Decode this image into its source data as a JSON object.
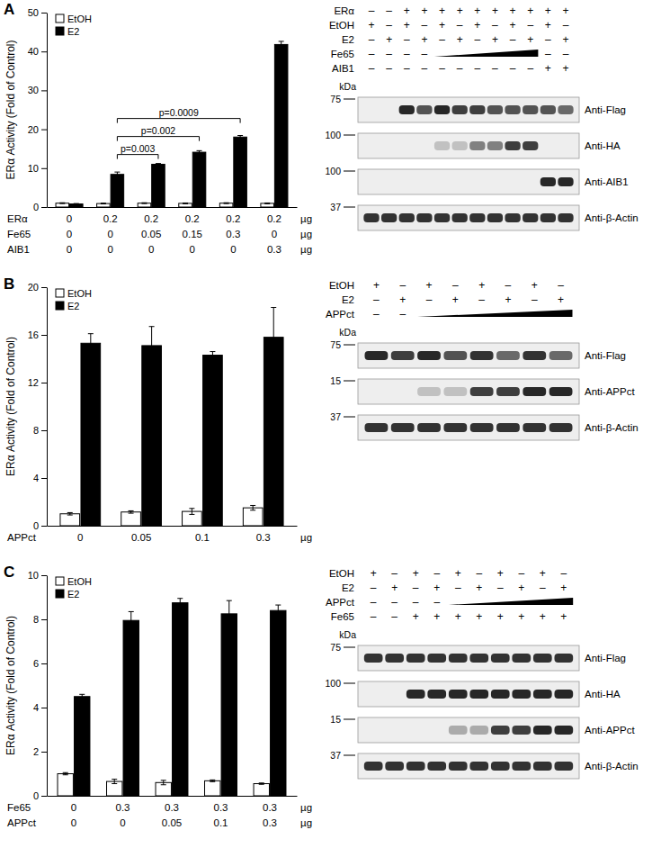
{
  "chart_data": [
    {
      "type": "bar",
      "label": "A",
      "y_label": "ERα Activity (Fold of Control)",
      "ylim": [
        0,
        50
      ],
      "yticks": [
        0,
        10,
        20,
        30,
        40,
        50
      ],
      "categories": [
        null,
        null,
        null,
        null,
        null,
        null
      ],
      "series": [
        {
          "name": "EtOH",
          "color": "#ffffff",
          "values": [
            1.0,
            0.9,
            1.0,
            0.95,
            1.0,
            0.95
          ],
          "errors": [
            0.1,
            0.1,
            0.1,
            0.1,
            0.1,
            0.1
          ]
        },
        {
          "name": "E2",
          "color": "#000000",
          "values": [
            0.8,
            8.4,
            11.0,
            14.1,
            18.0,
            41.8
          ],
          "errors": [
            0.1,
            0.6,
            0.2,
            0.4,
            0.4,
            0.8
          ]
        }
      ],
      "legend": "upper left",
      "conditions": [
        {
          "name": "ERα",
          "values": [
            0,
            0.2,
            0.2,
            0.2,
            0.2,
            0.2
          ]
        },
        {
          "name": "Fe65",
          "values": [
            0,
            0,
            0.05,
            0.15,
            0.3,
            0
          ]
        },
        {
          "name": "AIB1",
          "values": [
            0,
            0,
            0,
            0,
            0,
            0.3
          ]
        }
      ],
      "unit": "µg",
      "annotations": [
        {
          "text": "p=0.003",
          "from": 1,
          "to": 2
        },
        {
          "text": "p=0.002",
          "from": 1,
          "to": 3
        },
        {
          "text": "p=0.0009",
          "from": 1,
          "to": 4
        }
      ]
    },
    {
      "type": "bar",
      "label": "B",
      "y_label": "ERα Activity (Fold of Control)",
      "ylim": [
        0,
        20
      ],
      "yticks": [
        0,
        4,
        8,
        12,
        16,
        20
      ],
      "categories": [
        null,
        null,
        null,
        null
      ],
      "series": [
        {
          "name": "EtOH",
          "color": "#ffffff",
          "values": [
            1.0,
            1.15,
            1.2,
            1.5
          ],
          "errors": [
            0.1,
            0.1,
            0.25,
            0.2
          ]
        },
        {
          "name": "E2",
          "color": "#000000",
          "values": [
            15.3,
            15.1,
            14.3,
            15.8
          ],
          "errors": [
            0.8,
            1.6,
            0.3,
            2.5
          ]
        }
      ],
      "legend": "upper left",
      "conditions": [
        {
          "name": "APPct",
          "values": [
            0,
            0.05,
            0.1,
            0.3
          ]
        }
      ],
      "unit": "µg",
      "annotations": []
    },
    {
      "type": "bar",
      "label": "C",
      "y_label": "ERα Activity (Fold of Control)",
      "ylim": [
        0,
        10
      ],
      "yticks": [
        0,
        2,
        4,
        6,
        8,
        10
      ],
      "categories": [
        null,
        null,
        null,
        null,
        null
      ],
      "series": [
        {
          "name": "EtOH",
          "color": "#ffffff",
          "values": [
            1.0,
            0.65,
            0.6,
            0.68,
            0.55
          ],
          "errors": [
            0.05,
            0.1,
            0.1,
            0.04,
            0.03
          ]
        },
        {
          "name": "E2",
          "color": "#000000",
          "values": [
            4.5,
            7.95,
            8.75,
            8.25,
            8.4
          ],
          "errors": [
            0.1,
            0.4,
            0.2,
            0.6,
            0.25
          ]
        }
      ],
      "legend": "upper left",
      "conditions": [
        {
          "name": "Fe65",
          "values": [
            0,
            0.3,
            0.3,
            0.3,
            0.3
          ]
        },
        {
          "name": "APPct",
          "values": [
            0,
            0,
            0.05,
            0.1,
            0.3
          ]
        }
      ],
      "unit": "µg",
      "annotations": []
    }
  ],
  "blots": [
    {
      "kda_label": "kDa",
      "rows": [
        {
          "name": "ERα",
          "cells": [
            "–",
            "–",
            "+",
            "+",
            "+",
            "+",
            "+",
            "+",
            "+",
            "+",
            "+",
            "+"
          ]
        },
        {
          "name": "EtOH",
          "cells": [
            "+",
            "–",
            "+",
            "–",
            "+",
            "–",
            "+",
            "–",
            "+",
            "–",
            "+",
            "–"
          ]
        },
        {
          "name": "E2",
          "cells": [
            "–",
            "+",
            "–",
            "+",
            "–",
            "+",
            "–",
            "+",
            "–",
            "+",
            "–",
            "+"
          ]
        },
        {
          "name": "Fe65",
          "cells": [
            "–",
            "–",
            "–",
            "–",
            null,
            null,
            null,
            null,
            null,
            null,
            "–",
            "–"
          ]
        },
        {
          "name": "AIB1",
          "cells": [
            "–",
            "–",
            "–",
            "–",
            "–",
            "–",
            "–",
            "–",
            "–",
            "–",
            "+",
            "+"
          ]
        }
      ],
      "strips": [
        {
          "antibody": "Anti-Flag",
          "marker": 75,
          "bands": [
            0,
            0,
            0.9,
            0.7,
            0.9,
            0.8,
            0.8,
            0.7,
            0.7,
            0.7,
            0.7,
            0.6
          ]
        },
        {
          "antibody": "Anti-HA",
          "marker": 100,
          "bands": [
            0,
            0,
            0,
            0,
            0.2,
            0.2,
            0.5,
            0.5,
            0.8,
            0.8,
            0,
            0
          ]
        },
        {
          "antibody": "Anti-AIB1",
          "marker": 100,
          "bands": [
            0,
            0,
            0,
            0,
            0,
            0,
            0,
            0,
            0,
            0,
            0.9,
            0.9
          ]
        },
        {
          "antibody": "Anti-β-Actin",
          "marker": 37,
          "bands": [
            0.85,
            0.85,
            0.85,
            0.85,
            0.85,
            0.85,
            0.85,
            0.85,
            0.85,
            0.85,
            0.85,
            0.85
          ]
        }
      ]
    },
    {
      "kda_label": "kDa",
      "rows": [
        {
          "name": "EtOH",
          "cells": [
            "+",
            "–",
            "+",
            "–",
            "+",
            "–",
            "+",
            "–"
          ]
        },
        {
          "name": "E2",
          "cells": [
            "–",
            "+",
            "–",
            "+",
            "–",
            "+",
            "–",
            "+"
          ]
        },
        {
          "name": "APPct",
          "cells": [
            "–",
            "–",
            null,
            null,
            null,
            null,
            null,
            null
          ]
        }
      ],
      "strips": [
        {
          "antibody": "Anti-Flag",
          "marker": 75,
          "bands": [
            0.9,
            0.8,
            0.9,
            0.7,
            0.85,
            0.6,
            0.85,
            0.6
          ]
        },
        {
          "antibody": "Anti-APPct",
          "marker": 15,
          "bands": [
            0,
            0,
            0.2,
            0.2,
            0.8,
            0.8,
            0.9,
            0.9
          ]
        },
        {
          "antibody": "Anti-β-Actin",
          "marker": 37,
          "bands": [
            0.85,
            0.85,
            0.85,
            0.85,
            0.85,
            0.85,
            0.85,
            0.85
          ]
        }
      ]
    },
    {
      "kda_label": "kDa",
      "rows": [
        {
          "name": "EtOH",
          "cells": [
            "+",
            "–",
            "+",
            "–",
            "+",
            "–",
            "+",
            "–",
            "+",
            "–"
          ]
        },
        {
          "name": "E2",
          "cells": [
            "–",
            "+",
            "–",
            "+",
            "–",
            "+",
            "–",
            "+",
            "–",
            "+"
          ]
        },
        {
          "name": "APPct",
          "cells": [
            "–",
            "–",
            "–",
            "–",
            null,
            null,
            null,
            null,
            null,
            null
          ]
        },
        {
          "name": "Fe65",
          "cells": [
            "–",
            "–",
            "+",
            "+",
            "+",
            "+",
            "+",
            "+",
            "+",
            "+"
          ]
        }
      ],
      "strips": [
        {
          "antibody": "Anti-Flag",
          "marker": 75,
          "bands": [
            0.85,
            0.85,
            0.85,
            0.85,
            0.85,
            0.85,
            0.85,
            0.85,
            0.85,
            0.85
          ]
        },
        {
          "antibody": "Anti-HA",
          "marker": 100,
          "bands": [
            0,
            0,
            0.9,
            0.9,
            0.9,
            0.9,
            0.9,
            0.9,
            0.9,
            0.9
          ]
        },
        {
          "antibody": "Anti-APPct",
          "marker": 15,
          "bands": [
            0,
            0,
            0,
            0,
            0.3,
            0.3,
            0.8,
            0.8,
            0.9,
            0.9
          ]
        },
        {
          "antibody": "Anti-β-Actin",
          "marker": 37,
          "bands": [
            0.85,
            0.85,
            0.85,
            0.85,
            0.85,
            0.85,
            0.85,
            0.85,
            0.85,
            0.85
          ]
        }
      ]
    }
  ]
}
